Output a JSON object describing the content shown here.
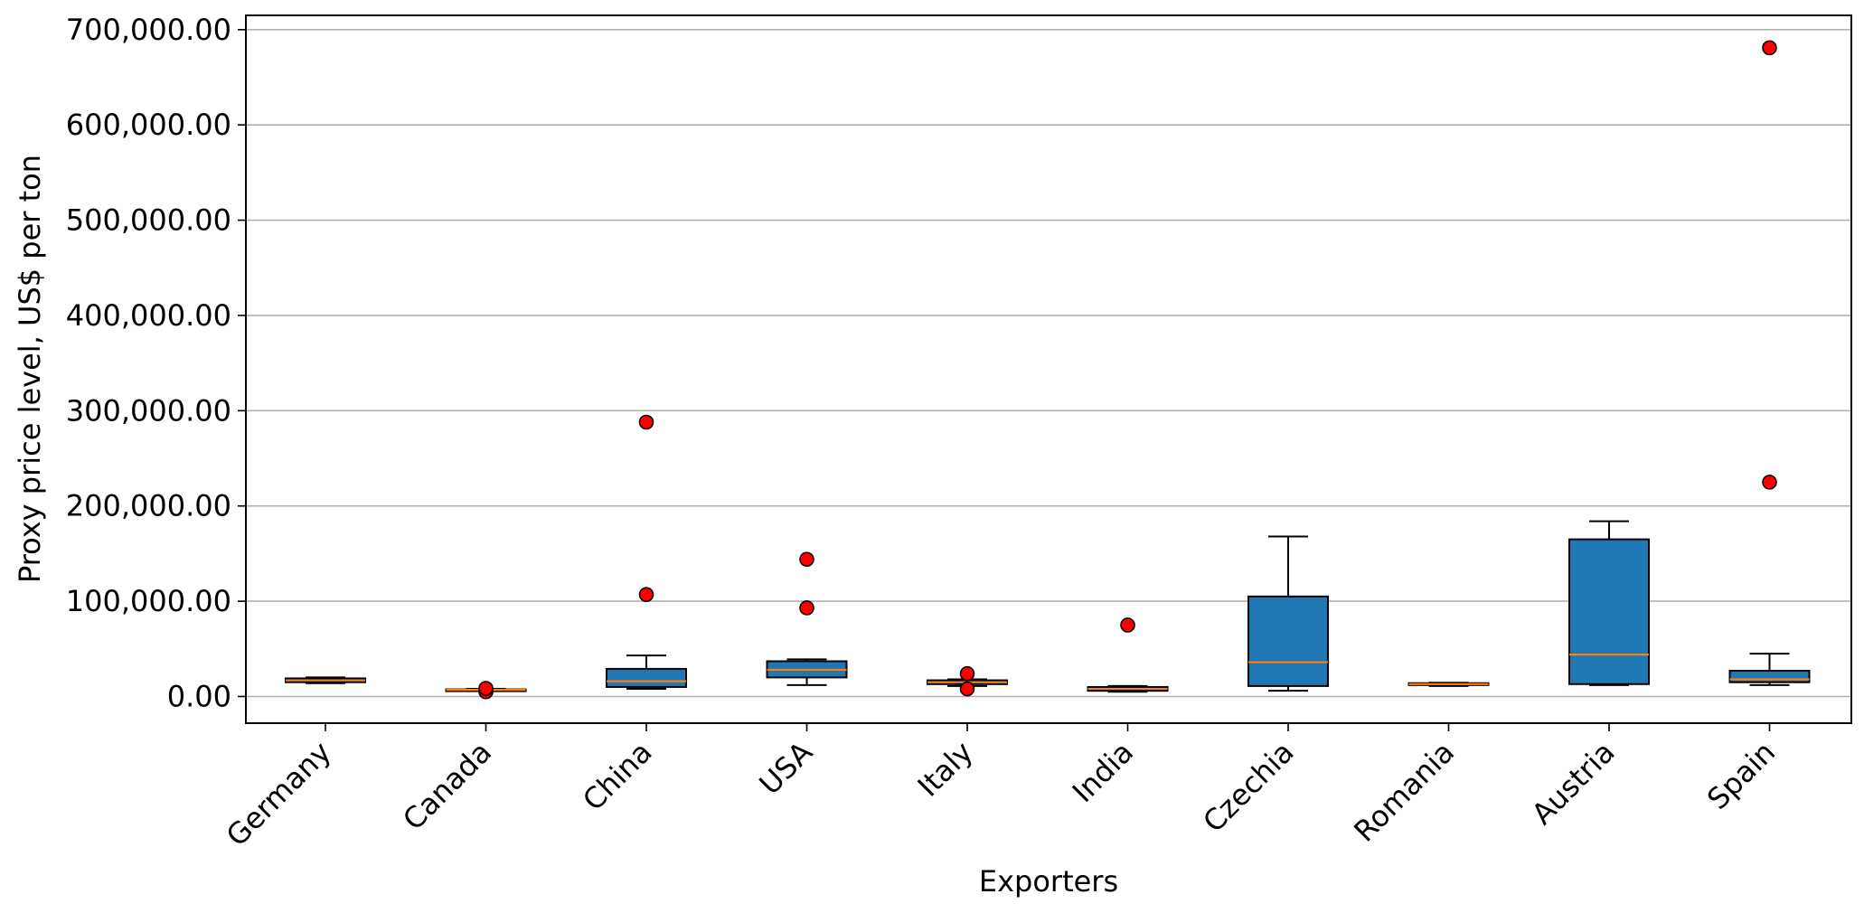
{
  "chart_data": {
    "type": "box",
    "title": "",
    "xlabel": "Exporters",
    "ylabel": "Proxy price level, US$ per ton",
    "ylim": [
      -28000,
      715000
    ],
    "yticks": [
      0,
      100000,
      200000,
      300000,
      400000,
      500000,
      600000,
      700000
    ],
    "ytick_labels": [
      "0.00",
      "100,000.00",
      "200,000.00",
      "300,000.00",
      "400,000.00",
      "500,000.00",
      "600,000.00",
      "700,000.00"
    ],
    "grid": "horizontal",
    "categories": [
      "Germany",
      "Canada",
      "China",
      "USA",
      "Italy",
      "India",
      "Czechia",
      "Romania",
      "Austria",
      "Spain"
    ],
    "boxes": [
      {
        "category": "Germany",
        "whisker_low": 14000,
        "q1": 15000,
        "median": 17000,
        "q3": 19000,
        "whisker_high": 20000,
        "outliers": []
      },
      {
        "category": "Canada",
        "whisker_low": 6000,
        "q1": 6500,
        "median": 7000,
        "q3": 7500,
        "whisker_high": 8000,
        "outliers": [
          5000,
          8500
        ]
      },
      {
        "category": "China",
        "whisker_low": 8000,
        "q1": 10000,
        "median": 16000,
        "q3": 29000,
        "whisker_high": 43000,
        "outliers": [
          107000,
          288000
        ]
      },
      {
        "category": "USA",
        "whisker_low": 12000,
        "q1": 20000,
        "median": 28000,
        "q3": 37000,
        "whisker_high": 39000,
        "outliers": [
          93000,
          144000
        ]
      },
      {
        "category": "Italy",
        "whisker_low": 11000,
        "q1": 13000,
        "median": 15000,
        "q3": 17000,
        "whisker_high": 18000,
        "outliers": [
          8000,
          24000
        ]
      },
      {
        "category": "India",
        "whisker_low": 5000,
        "q1": 6000,
        "median": 8000,
        "q3": 10000,
        "whisker_high": 11000,
        "outliers": [
          75000
        ]
      },
      {
        "category": "Czechia",
        "whisker_low": 6000,
        "q1": 11000,
        "median": 36000,
        "q3": 105000,
        "whisker_high": 168000,
        "outliers": []
      },
      {
        "category": "Romania",
        "whisker_low": 11000,
        "q1": 12000,
        "median": 13000,
        "q3": 14000,
        "whisker_high": 14500,
        "outliers": []
      },
      {
        "category": "Austria",
        "whisker_low": 12000,
        "q1": 13000,
        "median": 44000,
        "q3": 165000,
        "whisker_high": 184000,
        "outliers": []
      },
      {
        "category": "Spain",
        "whisker_low": 12000,
        "q1": 15000,
        "median": 18000,
        "q3": 27000,
        "whisker_high": 45000,
        "outliers": [
          225000,
          681000
        ]
      }
    ],
    "colors": {
      "box_fill": "#1f77b4",
      "median": "#ff7f0e",
      "outlier": "#ff0000",
      "edge": "#000000",
      "grid": "#b0b0b0"
    }
  }
}
